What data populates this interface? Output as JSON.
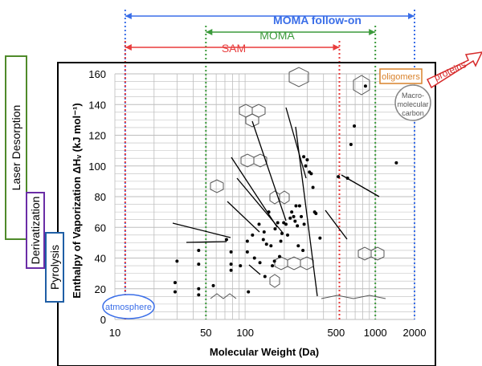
{
  "chart_data": {
    "type": "scatter",
    "xlabel": "Molecular Weight (Da)",
    "ylabel": "Enthalpy of Vaporization ΔHᵥ (kJ mol⁻¹)",
    "xscale": "log",
    "xlim": [
      10,
      2000
    ],
    "ylim": [
      0,
      160
    ],
    "xticks": [
      10,
      50,
      100,
      500,
      1000,
      2000
    ],
    "xtick_labels": [
      "10",
      "50",
      "100",
      "500",
      "1000",
      "2000"
    ],
    "yticks": [
      0,
      20,
      40,
      60,
      80,
      100,
      120,
      140,
      160
    ],
    "ytick_labels": [
      "0",
      "20",
      "40",
      "60",
      "80",
      "100",
      "120",
      "140",
      "160"
    ],
    "grid": true,
    "points": [
      [
        29,
        24
      ],
      [
        29,
        18
      ],
      [
        30,
        38
      ],
      [
        44,
        45
      ],
      [
        44,
        36
      ],
      [
        44,
        20
      ],
      [
        44,
        16
      ],
      [
        57,
        22
      ],
      [
        72,
        52
      ],
      [
        78,
        44
      ],
      [
        78,
        36
      ],
      [
        78,
        32
      ],
      [
        92,
        35
      ],
      [
        104,
        51
      ],
      [
        104,
        44
      ],
      [
        106,
        18
      ],
      [
        114,
        55
      ],
      [
        118,
        40
      ],
      [
        128,
        62
      ],
      [
        130,
        37
      ],
      [
        138,
        52
      ],
      [
        140,
        57
      ],
      [
        142,
        28
      ],
      [
        146,
        49
      ],
      [
        152,
        70
      ],
      [
        158,
        48
      ],
      [
        162,
        35
      ],
      [
        168,
        38
      ],
      [
        170,
        59
      ],
      [
        178,
        63
      ],
      [
        184,
        41
      ],
      [
        188,
        51
      ],
      [
        192,
        56
      ],
      [
        198,
        63
      ],
      [
        206,
        62
      ],
      [
        212,
        55
      ],
      [
        222,
        66
      ],
      [
        228,
        70
      ],
      [
        236,
        67
      ],
      [
        242,
        64
      ],
      [
        246,
        74
      ],
      [
        252,
        61
      ],
      [
        256,
        48
      ],
      [
        262,
        74
      ],
      [
        270,
        67
      ],
      [
        278,
        45
      ],
      [
        282,
        106
      ],
      [
        284,
        62
      ],
      [
        292,
        100
      ],
      [
        300,
        104
      ],
      [
        312,
        96
      ],
      [
        322,
        95
      ],
      [
        332,
        86
      ],
      [
        342,
        70
      ],
      [
        350,
        69
      ],
      [
        376,
        53
      ],
      [
        520,
        93
      ],
      [
        612,
        92
      ],
      [
        650,
        114
      ],
      [
        690,
        126
      ],
      [
        840,
        152
      ],
      [
        1450,
        102
      ]
    ],
    "ranges": [
      {
        "name": "MOMA follow-on",
        "from": 12,
        "to": 2000,
        "color": "#3a6ee8"
      },
      {
        "name": "MOMA",
        "from": 50,
        "to": 1000,
        "color": "#3c9a3c"
      },
      {
        "name": "SAM",
        "from": 12,
        "to": 530,
        "color": "#e83c3c"
      }
    ],
    "annotations": [
      "atmosphere",
      "oligomers",
      "proteins",
      "Macro-molecular carbon"
    ],
    "techniques": [
      {
        "name": "Laser Desorption",
        "color": "#4f8a2a"
      },
      {
        "name": "Derivatization",
        "color": "#6a2da6"
      },
      {
        "name": "Pyrolysis",
        "color": "#1f5fa6"
      }
    ],
    "colors": {
      "grid": "#bdbdbd",
      "points": "#000000"
    }
  }
}
